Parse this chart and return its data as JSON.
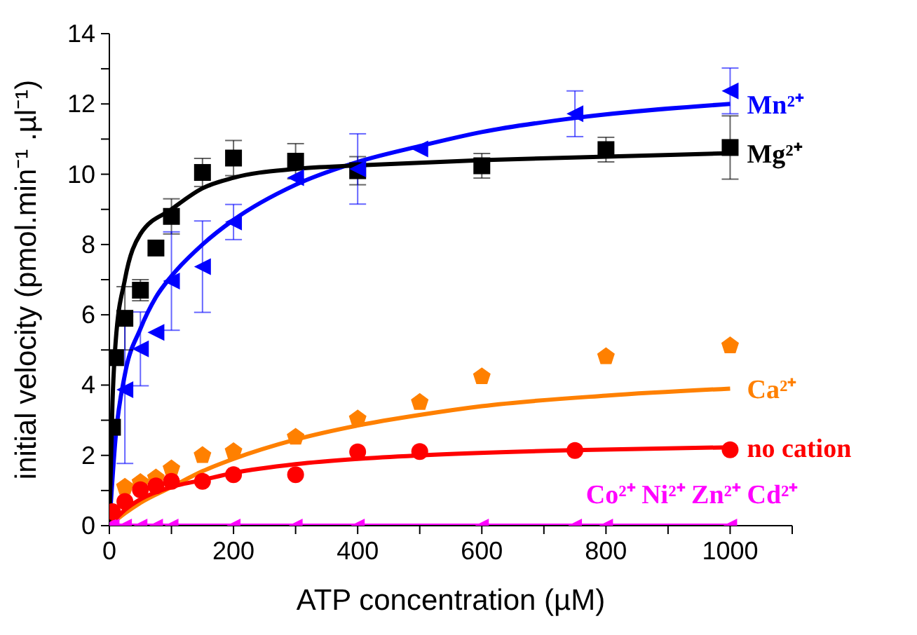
{
  "chart_data": {
    "type": "scatter",
    "xlabel": "ATP concentration (µM)",
    "ylabel": "initial velocity (pmol.min⁻¹ .µl⁻¹)",
    "xlim": [
      0,
      1100
    ],
    "ylim": [
      0,
      14
    ],
    "xticks": [
      0,
      {
        "value": 100,
        "label": null
      },
      200,
      {
        "value": 300,
        "label": null
      },
      400,
      {
        "value": 500,
        "label": null
      },
      600,
      {
        "value": 700,
        "label": null
      },
      800,
      {
        "value": 900,
        "label": null
      },
      1000,
      {
        "value": 1100,
        "label": null
      }
    ],
    "yticks": [
      0,
      {
        "value": 1,
        "label": null
      },
      2,
      {
        "value": 3,
        "label": null
      },
      4,
      {
        "value": 5,
        "label": null
      },
      6,
      {
        "value": 7,
        "label": null
      },
      8,
      {
        "value": 9,
        "label": null
      },
      10,
      {
        "value": 11,
        "label": null
      },
      12,
      {
        "value": 13,
        "label": null
      },
      14
    ],
    "grid": false,
    "legend": false,
    "series": [
      {
        "marker": "square",
        "color": "#000000",
        "x": [
          5,
          10,
          25,
          50,
          75,
          100,
          150,
          200,
          300,
          400,
          600,
          800,
          1000
        ],
        "values": [
          2.8,
          4.78,
          5.9,
          6.7,
          7.9,
          8.8,
          10.05,
          10.46,
          10.37,
          10.1,
          10.24,
          10.7,
          10.76
        ],
        "errors": [
          null,
          null,
          0.9,
          0.3,
          null,
          0.5,
          0.4,
          0.5,
          0.5,
          0.4,
          0.35,
          0.35,
          0.9
        ]
      },
      {
        "marker": "triangle",
        "color": "#0000ff",
        "x": [
          25,
          50,
          75,
          100,
          150,
          200,
          300,
          400,
          500,
          750,
          1000
        ],
        "values": [
          3.87,
          5.03,
          5.5,
          6.96,
          7.37,
          8.64,
          9.9,
          10.15,
          10.72,
          11.72,
          12.37
        ],
        "errors": [
          2.1,
          1.05,
          null,
          1.4,
          1.3,
          0.5,
          null,
          1,
          null,
          0.65,
          0.65
        ]
      },
      {
        "color": "#ff8000",
        "x": [
          25,
          50,
          75,
          100,
          150,
          200,
          300,
          400,
          500,
          600,
          800,
          1000
        ],
        "values": [
          1.1,
          1.23,
          1.36,
          1.62,
          2.0,
          2.11,
          2.52,
          3.04,
          3.51,
          4.24,
          4.81,
          5.12
        ]
      },
      {
        "marker": "circle",
        "color": "#ff0000",
        "x": [
          5,
          25,
          50,
          75,
          100,
          150,
          200,
          300,
          400,
          500,
          750,
          1000
        ],
        "values": [
          0.4,
          0.69,
          1.02,
          1.13,
          1.26,
          1.26,
          1.45,
          1.45,
          2.1,
          2.11,
          2.14,
          2.16
        ]
      },
      {
        "type": "line",
        "name": "Mn²⁺",
        "color": "#0000ff",
        "marker": "none",
        "x": [
          0,
          10,
          25,
          50,
          75,
          100,
          150,
          200,
          300,
          400,
          500,
          600,
          750,
          1000
        ],
        "values": [
          0,
          2.5,
          4.3,
          5.6,
          6.5,
          7.1,
          8.0,
          8.7,
          9.7,
          10.35,
          10.8,
          11.2,
          11.6,
          12.0
        ]
      },
      {
        "type": "line",
        "name": "Mg²⁺",
        "color": "#000000",
        "marker": "none",
        "x": [
          0,
          5,
          10,
          25,
          50,
          100,
          150,
          200,
          300,
          400,
          600,
          800,
          1000
        ],
        "values": [
          0,
          3.5,
          5.2,
          7.0,
          8.3,
          9.0,
          9.6,
          9.9,
          10.15,
          10.25,
          10.4,
          10.5,
          10.6
        ]
      },
      {
        "type": "line",
        "name": "Ca²⁺",
        "color": "#ff8000",
        "marker": "none",
        "x": [
          0,
          25,
          50,
          100,
          150,
          200,
          300,
          400,
          500,
          600,
          800,
          1000
        ],
        "values": [
          0,
          0.35,
          0.65,
          1.1,
          1.55,
          1.9,
          2.45,
          2.85,
          3.15,
          3.4,
          3.7,
          3.9
        ]
      },
      {
        "type": "line",
        "name": "no cation",
        "color": "#ff0000",
        "marker": "none",
        "x": [
          0,
          25,
          50,
          100,
          150,
          200,
          300,
          400,
          500,
          750,
          1000
        ],
        "values": [
          0,
          0.45,
          0.75,
          1.1,
          1.3,
          1.5,
          1.75,
          1.9,
          2.0,
          2.15,
          2.23
        ]
      },
      {
        "type": "line",
        "name": "Co²⁺ Ni²⁺ Zn²⁺ Cd²⁺",
        "color": "#ff00ff",
        "marker": "triangle",
        "x": [
          0,
          5,
          25,
          50,
          75,
          100,
          200,
          300,
          400,
          600,
          750,
          800,
          1000
        ],
        "values": [
          0,
          0,
          0,
          0,
          0,
          0,
          0,
          0,
          0,
          0,
          0,
          0,
          0
        ]
      }
    ]
  }
}
